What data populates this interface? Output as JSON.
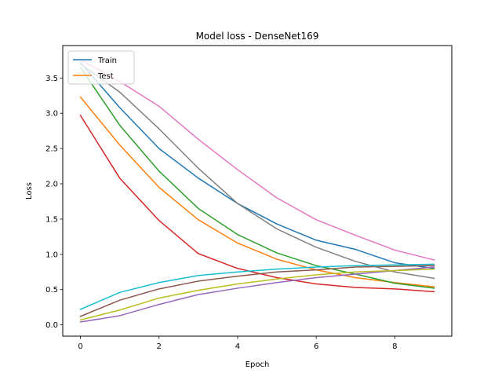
{
  "chart_data": {
    "type": "line",
    "title": "Model loss - DenseNet169",
    "xlabel": "Epoch",
    "ylabel": "Loss",
    "xlim": [
      -0.45,
      9.45
    ],
    "ylim": [
      -0.16,
      3.96
    ],
    "xticks": [
      0,
      2,
      4,
      6,
      8
    ],
    "yticks": [
      0.0,
      0.5,
      1.0,
      1.5,
      2.0,
      2.5,
      3.0,
      3.5
    ],
    "ytick_labels": [
      "0.0",
      "0.5",
      "1.0",
      "1.5",
      "2.0",
      "2.5",
      "3.0",
      "3.5"
    ],
    "grid": false,
    "legend": {
      "placement": "top-left",
      "entries": [
        {
          "label": "Train",
          "color": "#1f77b4"
        },
        {
          "label": "Test",
          "color": "#ff7f0e"
        }
      ]
    },
    "x": [
      0,
      1,
      2,
      3,
      4,
      5,
      6,
      7,
      8,
      9
    ],
    "series": [
      {
        "color": "#1f77b4",
        "values": [
          3.72,
          3.08,
          2.5,
          2.08,
          1.72,
          1.43,
          1.2,
          1.07,
          0.88,
          0.8
        ]
      },
      {
        "color": "#ff7f0e",
        "values": [
          3.23,
          2.55,
          1.95,
          1.49,
          1.16,
          0.93,
          0.78,
          0.67,
          0.6,
          0.54
        ]
      },
      {
        "color": "#2ca02c",
        "values": [
          3.65,
          2.83,
          2.18,
          1.65,
          1.28,
          1.02,
          0.84,
          0.72,
          0.59,
          0.52
        ]
      },
      {
        "color": "#d62728",
        "values": [
          2.97,
          2.08,
          1.48,
          1.01,
          0.8,
          0.67,
          0.58,
          0.53,
          0.51,
          0.47
        ]
      },
      {
        "color": "#9467bd",
        "values": [
          0.04,
          0.13,
          0.29,
          0.43,
          0.52,
          0.6,
          0.67,
          0.72,
          0.77,
          0.82
        ]
      },
      {
        "color": "#8c564b",
        "values": [
          0.12,
          0.35,
          0.51,
          0.62,
          0.69,
          0.75,
          0.78,
          0.82,
          0.83,
          0.84
        ]
      },
      {
        "color": "#e377c2",
        "values": [
          3.76,
          3.45,
          3.1,
          2.63,
          2.2,
          1.8,
          1.49,
          1.27,
          1.06,
          0.92
        ]
      },
      {
        "color": "#7f7f7f",
        "values": [
          3.7,
          3.3,
          2.78,
          2.22,
          1.72,
          1.36,
          1.1,
          0.9,
          0.75,
          0.66
        ]
      },
      {
        "color": "#bcbd22",
        "values": [
          0.07,
          0.21,
          0.38,
          0.49,
          0.58,
          0.65,
          0.71,
          0.75,
          0.77,
          0.79
        ]
      },
      {
        "color": "#17becf",
        "values": [
          0.22,
          0.46,
          0.6,
          0.7,
          0.75,
          0.79,
          0.82,
          0.84,
          0.85,
          0.86
        ]
      }
    ]
  }
}
